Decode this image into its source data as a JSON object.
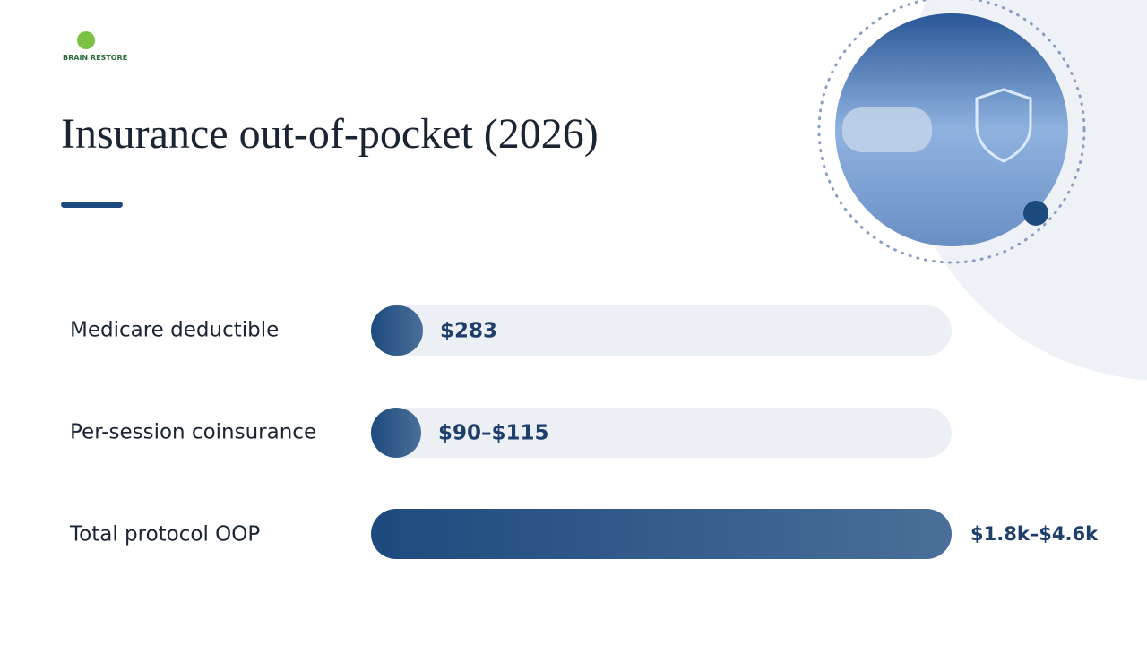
{
  "logo": {
    "text": "BRAIN RESTORE"
  },
  "header": {
    "title": "Insurance out-of-pocket (2026)"
  },
  "rows": [
    {
      "label": "Medicare deductible",
      "value": "$283"
    },
    {
      "label": "Per-session coinsurance",
      "value": "$90–$115"
    },
    {
      "label": "Total protocol OOP",
      "value": "$1.8k–$4.6k"
    }
  ]
}
